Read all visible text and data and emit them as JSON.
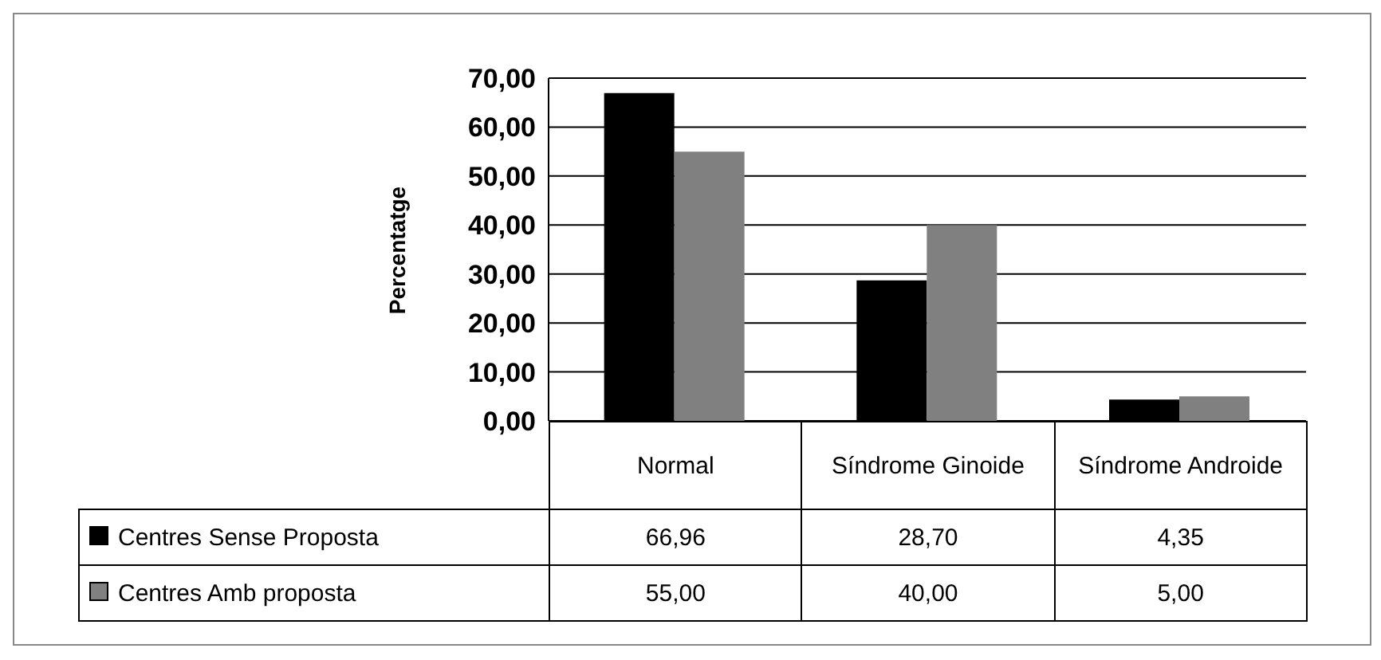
{
  "chart_data": {
    "type": "bar",
    "ylabel": "Percentatge",
    "categories": [
      "Normal",
      "Síndrome Ginoide",
      "Síndrome Androide"
    ],
    "series": [
      {
        "name": "Centres Sense Proposta",
        "color": "#000000",
        "values": [
          66.96,
          28.7,
          4.35
        ],
        "value_labels": [
          "66,96",
          "28,70",
          "4,35"
        ]
      },
      {
        "name": "Centres Amb proposta",
        "color": "#808080",
        "values": [
          55.0,
          40.0,
          5.0
        ],
        "value_labels": [
          "55,00",
          "40,00",
          "5,00"
        ]
      }
    ],
    "ylim": [
      0,
      70
    ],
    "yticks": [
      {
        "value": 0,
        "label": "0,00"
      },
      {
        "value": 10,
        "label": "10,00"
      },
      {
        "value": 20,
        "label": "20,00"
      },
      {
        "value": 30,
        "label": "30,00"
      },
      {
        "value": 40,
        "label": "40,00"
      },
      {
        "value": 50,
        "label": "50,00"
      },
      {
        "value": 60,
        "label": "60,00"
      },
      {
        "value": 70,
        "label": "70,00"
      }
    ],
    "grid": "y",
    "legend": "bottom"
  }
}
